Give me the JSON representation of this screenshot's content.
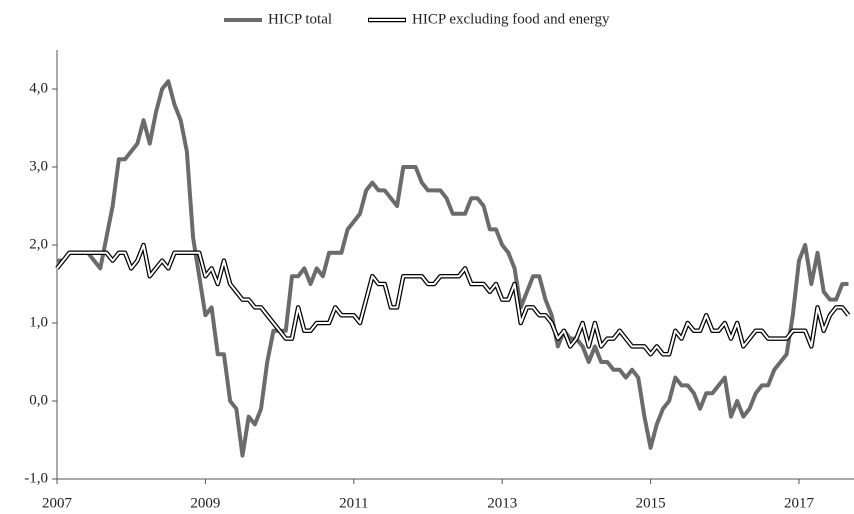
{
  "chart_data": {
    "type": "line",
    "categories": [
      "2007",
      null,
      null,
      null,
      null,
      null,
      null,
      null,
      null,
      null,
      null,
      null,
      null,
      null,
      null,
      null,
      null,
      null,
      null,
      null,
      null,
      null,
      null,
      null,
      "2009",
      null,
      null,
      null,
      null,
      null,
      null,
      null,
      null,
      null,
      null,
      null,
      null,
      null,
      null,
      null,
      null,
      null,
      null,
      null,
      null,
      null,
      null,
      null,
      "2011",
      null,
      null,
      null,
      null,
      null,
      null,
      null,
      null,
      null,
      null,
      null,
      null,
      null,
      null,
      null,
      null,
      null,
      null,
      null,
      null,
      null,
      null,
      null,
      "2013",
      null,
      null,
      null,
      null,
      null,
      null,
      null,
      null,
      null,
      null,
      null,
      null,
      null,
      null,
      null,
      null,
      null,
      null,
      null,
      null,
      null,
      null,
      null,
      "2015",
      null,
      null,
      null,
      null,
      null,
      null,
      null,
      null,
      null,
      null,
      null,
      null,
      null,
      null,
      null,
      null,
      null,
      null,
      null,
      null,
      null,
      null,
      null,
      "2017",
      null,
      null,
      null,
      null,
      null,
      null,
      null,
      null
    ],
    "series": [
      {
        "name": "HICP total",
        "color": "#6b6b6b",
        "values": [
          1.8,
          1.8,
          1.9,
          1.9,
          1.9,
          1.9,
          1.8,
          1.7,
          2.1,
          2.5,
          3.1,
          3.1,
          3.2,
          3.3,
          3.6,
          3.3,
          3.7,
          4.0,
          4.1,
          3.8,
          3.6,
          3.2,
          2.1,
          1.6,
          1.1,
          1.2,
          0.6,
          0.6,
          0.0,
          -0.1,
          -0.7,
          -0.2,
          -0.3,
          -0.1,
          0.5,
          0.9,
          0.9,
          0.9,
          1.6,
          1.6,
          1.7,
          1.5,
          1.7,
          1.6,
          1.9,
          1.9,
          1.9,
          2.2,
          2.3,
          2.4,
          2.7,
          2.8,
          2.7,
          2.7,
          2.6,
          2.5,
          3.0,
          3.0,
          3.0,
          2.8,
          2.7,
          2.7,
          2.7,
          2.6,
          2.4,
          2.4,
          2.4,
          2.6,
          2.6,
          2.5,
          2.2,
          2.2,
          2.0,
          1.9,
          1.7,
          1.2,
          1.4,
          1.6,
          1.6,
          1.3,
          1.1,
          0.7,
          0.9,
          0.8,
          0.8,
          0.7,
          0.5,
          0.7,
          0.5,
          0.5,
          0.4,
          0.4,
          0.3,
          0.4,
          0.3,
          -0.2,
          -0.6,
          -0.3,
          -0.1,
          0.0,
          0.3,
          0.2,
          0.2,
          0.1,
          -0.1,
          0.1,
          0.1,
          0.2,
          0.3,
          -0.2,
          0.0,
          -0.2,
          -0.1,
          0.1,
          0.2,
          0.2,
          0.4,
          0.5,
          0.6,
          1.1,
          1.8,
          2.0,
          1.5,
          1.9,
          1.4,
          1.3,
          1.3,
          1.5,
          1.5
        ]
      },
      {
        "name": "HICP excluding food and energy",
        "color": "#000000",
        "values": [
          1.7,
          1.8,
          1.9,
          1.9,
          1.9,
          1.9,
          1.9,
          1.9,
          1.9,
          1.8,
          1.9,
          1.9,
          1.7,
          1.8,
          2.0,
          1.6,
          1.7,
          1.8,
          1.7,
          1.9,
          1.9,
          1.9,
          1.9,
          1.9,
          1.6,
          1.7,
          1.5,
          1.8,
          1.5,
          1.4,
          1.3,
          1.3,
          1.2,
          1.2,
          1.1,
          1.0,
          0.9,
          0.8,
          0.8,
          1.2,
          0.9,
          0.9,
          1.0,
          1.0,
          1.0,
          1.2,
          1.1,
          1.1,
          1.1,
          1.0,
          1.3,
          1.6,
          1.5,
          1.5,
          1.2,
          1.2,
          1.6,
          1.6,
          1.6,
          1.6,
          1.5,
          1.5,
          1.6,
          1.6,
          1.6,
          1.6,
          1.7,
          1.5,
          1.5,
          1.5,
          1.4,
          1.5,
          1.3,
          1.3,
          1.5,
          1.0,
          1.2,
          1.2,
          1.1,
          1.1,
          1.0,
          0.8,
          0.9,
          0.7,
          0.8,
          1.0,
          0.7,
          1.0,
          0.7,
          0.8,
          0.8,
          0.9,
          0.8,
          0.7,
          0.7,
          0.7,
          0.6,
          0.7,
          0.6,
          0.6,
          0.9,
          0.8,
          1.0,
          0.9,
          0.9,
          1.1,
          0.9,
          0.9,
          1.0,
          0.8,
          1.0,
          0.7,
          0.8,
          0.9,
          0.9,
          0.8,
          0.8,
          0.8,
          0.8,
          0.9,
          0.9,
          0.9,
          0.7,
          1.2,
          0.9,
          1.1,
          1.2,
          1.2,
          1.1
        ]
      }
    ],
    "ylim": [
      -1,
      4.5
    ],
    "yticks": [
      {
        "value": -1,
        "label": "-1,0"
      },
      {
        "value": 0,
        "label": "0,0"
      },
      {
        "value": 1,
        "label": "1,0"
      },
      {
        "value": 2,
        "label": "2,0"
      },
      {
        "value": 3,
        "label": "3,0"
      },
      {
        "value": 4,
        "label": "4,0"
      }
    ],
    "grid": false,
    "legend": "top"
  }
}
